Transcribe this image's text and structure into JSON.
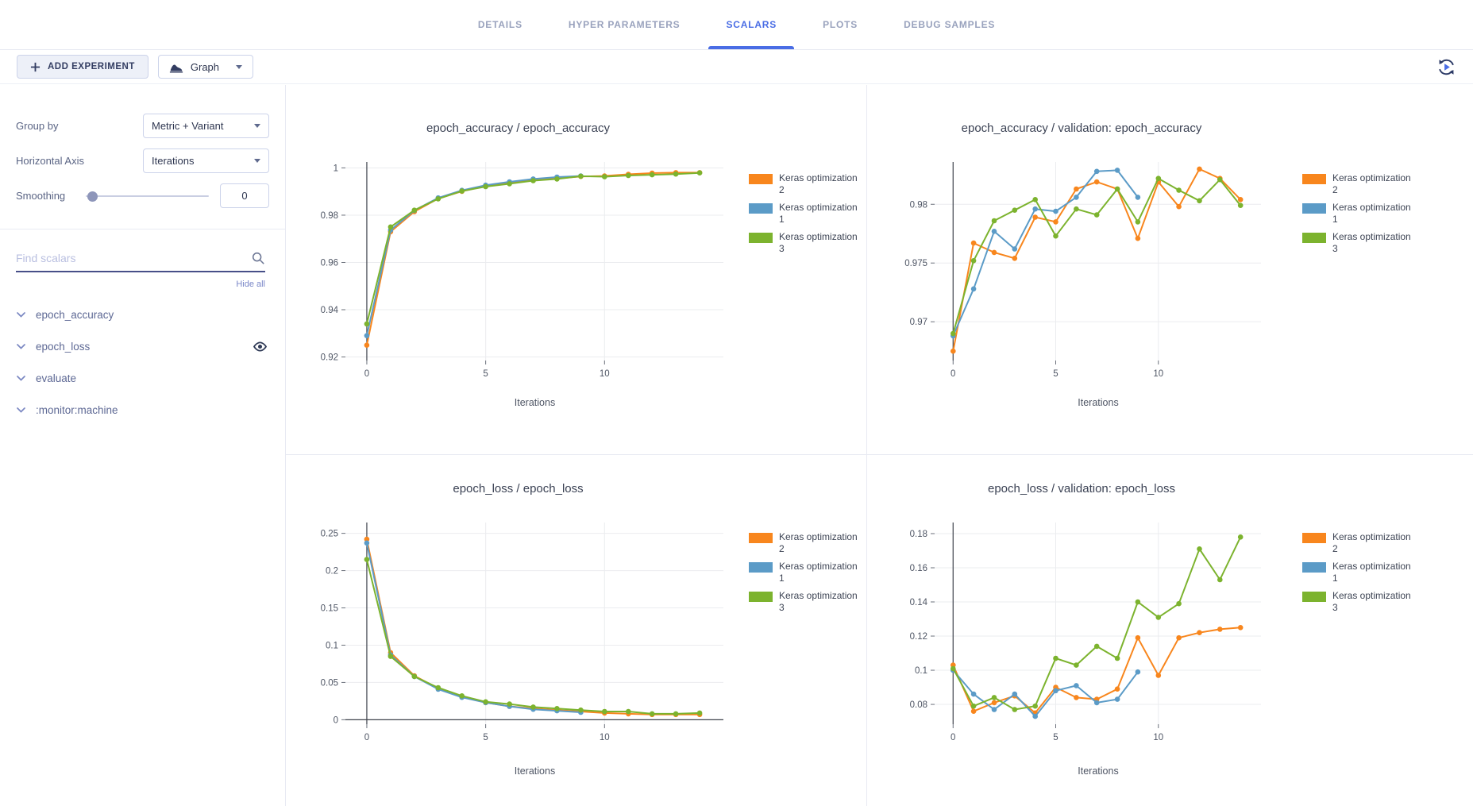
{
  "header": {
    "tabs": [
      {
        "label": "DETAILS",
        "active": false
      },
      {
        "label": "HYPER PARAMETERS",
        "active": false
      },
      {
        "label": "SCALARS",
        "active": true
      },
      {
        "label": "PLOTS",
        "active": false
      },
      {
        "label": "DEBUG SAMPLES",
        "active": false
      }
    ]
  },
  "toolbar": {
    "add_experiment_label": "ADD EXPERIMENT",
    "graph_label": "Graph",
    "refresh_icon": "auto-refresh-icon"
  },
  "sidebar": {
    "group_by": {
      "label": "Group by",
      "value": "Metric + Variant"
    },
    "horizontal_axis": {
      "label": "Horizontal Axis",
      "value": "Iterations"
    },
    "smoothing": {
      "label": "Smoothing",
      "value": "0"
    },
    "search": {
      "placeholder": "Find scalars"
    },
    "hide_all_label": "Hide all",
    "metrics": [
      {
        "label": "epoch_accuracy",
        "eye_visible": false
      },
      {
        "label": "epoch_loss",
        "eye_visible": true
      },
      {
        "label": "evaluate",
        "eye_visible": false
      },
      {
        "label": ":monitor:machine",
        "eye_visible": false
      }
    ]
  },
  "colors": {
    "accent": "#4a6de5",
    "orange": "#f8861d",
    "blue": "#5b9bc7",
    "green": "#7cb32e",
    "gridline": "#ebecef",
    "zeroline": "#3f434c"
  },
  "chart_data": [
    {
      "type": "line",
      "title": "epoch_accuracy / epoch_accuracy",
      "xlabel": "Iterations",
      "legend_position": "right",
      "grid": true,
      "xlim": [
        -0.9,
        15.0
      ],
      "xticks": [
        0,
        5,
        10
      ],
      "ylim": [
        0.9185,
        1.0025
      ],
      "yticks": [
        0.92,
        0.94,
        0.96,
        0.98,
        1
      ],
      "ytick_labels": [
        "0.92",
        "0.94",
        "0.96",
        "0.98",
        "1"
      ],
      "zeroline_x": true,
      "zeroline_y": false,
      "x": [
        0,
        1,
        2,
        3,
        4,
        5,
        6,
        7,
        8,
        9,
        10,
        11,
        12,
        13,
        14
      ],
      "series": [
        {
          "name": "Keras optimization 2",
          "color_key": "orange",
          "values": [
            0.925,
            0.973,
            0.9815,
            0.987,
            0.9901,
            0.9924,
            0.9936,
            0.9948,
            0.9955,
            0.9964,
            0.9966,
            0.9973,
            0.9978,
            0.998,
            0.998
          ]
        },
        {
          "name": "Keras optimization 1",
          "color_key": "blue",
          "values": [
            0.929,
            0.9737,
            0.982,
            0.9873,
            0.9905,
            0.9927,
            0.9941,
            0.9953,
            0.9961,
            0.9966
          ]
        },
        {
          "name": "Keras optimization 3",
          "color_key": "green",
          "values": [
            0.934,
            0.975,
            0.9821,
            0.9869,
            0.9902,
            0.9921,
            0.9933,
            0.9946,
            0.9953,
            0.9965,
            0.9963,
            0.9968,
            0.9971,
            0.9974,
            0.9979
          ]
        }
      ]
    },
    {
      "type": "line",
      "title": "epoch_accuracy / validation: epoch_accuracy",
      "xlabel": "Iterations",
      "legend_position": "right",
      "grid": true,
      "xlim": [
        -0.9,
        15.0
      ],
      "xticks": [
        0,
        5,
        10
      ],
      "ylim": [
        0.9667,
        0.9836
      ],
      "yticks": [
        0.97,
        0.975,
        0.98
      ],
      "ytick_labels": [
        "0.97",
        "0.975",
        "0.98"
      ],
      "zeroline_x": true,
      "zeroline_y": false,
      "x": [
        0,
        1,
        2,
        3,
        4,
        5,
        6,
        7,
        8,
        9,
        10,
        11,
        12,
        13,
        14
      ],
      "series": [
        {
          "name": "Keras optimization 2",
          "color_key": "orange",
          "values": [
            0.9675,
            0.9767,
            0.9759,
            0.9754,
            0.9789,
            0.9785,
            0.9813,
            0.9819,
            0.9813,
            0.9771,
            0.9819,
            0.9798,
            0.983,
            0.9822,
            0.9804
          ]
        },
        {
          "name": "Keras optimization 1",
          "color_key": "blue",
          "values": [
            0.9688,
            0.9728,
            0.9777,
            0.9762,
            0.9796,
            0.9794,
            0.9806,
            0.9828,
            0.9829,
            0.9806
          ]
        },
        {
          "name": "Keras optimization 3",
          "color_key": "green",
          "values": [
            0.969,
            0.9752,
            0.9786,
            0.9795,
            0.9804,
            0.9773,
            0.9796,
            0.9791,
            0.9813,
            0.9785,
            0.9822,
            0.9812,
            0.9803,
            0.9821,
            0.9799
          ]
        }
      ]
    },
    {
      "type": "line",
      "title": "epoch_loss / epoch_loss",
      "xlabel": "Iterations",
      "legend_position": "right",
      "grid": true,
      "xlim": [
        -0.9,
        15.0
      ],
      "xticks": [
        0,
        5,
        10
      ],
      "ylim": [
        -0.006,
        0.2645
      ],
      "yticks": [
        0,
        0.05,
        0.1,
        0.15,
        0.2,
        0.25
      ],
      "ytick_labels": [
        "0",
        "0.05",
        "0.1",
        "0.15",
        "0.2",
        "0.25"
      ],
      "zeroline_x": true,
      "zeroline_y": true,
      "x": [
        0,
        1,
        2,
        3,
        4,
        5,
        6,
        7,
        8,
        9,
        10,
        11,
        12,
        13,
        14
      ],
      "series": [
        {
          "name": "Keras optimization 2",
          "color_key": "orange",
          "values": [
            0.242,
            0.09,
            0.059,
            0.042,
            0.031,
            0.023,
            0.018,
            0.015,
            0.013,
            0.011,
            0.009,
            0.008,
            0.007,
            0.007,
            0.007
          ]
        },
        {
          "name": "Keras optimization 1",
          "color_key": "blue",
          "values": [
            0.237,
            0.087,
            0.058,
            0.041,
            0.03,
            0.023,
            0.018,
            0.014,
            0.012,
            0.01
          ]
        },
        {
          "name": "Keras optimization 3",
          "color_key": "green",
          "values": [
            0.215,
            0.085,
            0.058,
            0.043,
            0.032,
            0.024,
            0.021,
            0.017,
            0.015,
            0.013,
            0.011,
            0.011,
            0.008,
            0.008,
            0.009
          ]
        }
      ]
    },
    {
      "type": "line",
      "title": "epoch_loss / validation: epoch_loss",
      "xlabel": "Iterations",
      "legend_position": "right",
      "grid": true,
      "xlim": [
        -0.9,
        15.0
      ],
      "xticks": [
        0,
        5,
        10
      ],
      "ylim": [
        0.0684,
        0.1865
      ],
      "yticks": [
        0.08,
        0.1,
        0.12,
        0.14,
        0.16,
        0.18
      ],
      "ytick_labels": [
        "0.08",
        "0.1",
        "0.12",
        "0.14",
        "0.16",
        "0.18"
      ],
      "zeroline_x": true,
      "zeroline_y": false,
      "x": [
        0,
        1,
        2,
        3,
        4,
        5,
        6,
        7,
        8,
        9,
        10,
        11,
        12,
        13,
        14
      ],
      "series": [
        {
          "name": "Keras optimization 2",
          "color_key": "orange",
          "values": [
            0.103,
            0.076,
            0.081,
            0.085,
            0.075,
            0.09,
            0.084,
            0.083,
            0.089,
            0.119,
            0.097,
            0.119,
            0.122,
            0.124,
            0.125
          ]
        },
        {
          "name": "Keras optimization 1",
          "color_key": "blue",
          "values": [
            0.1,
            0.086,
            0.077,
            0.086,
            0.073,
            0.088,
            0.091,
            0.081,
            0.083,
            0.099
          ]
        },
        {
          "name": "Keras optimization 3",
          "color_key": "green",
          "values": [
            0.101,
            0.079,
            0.084,
            0.077,
            0.079,
            0.107,
            0.103,
            0.114,
            0.107,
            0.14,
            0.131,
            0.139,
            0.171,
            0.153,
            0.178
          ]
        }
      ]
    }
  ]
}
